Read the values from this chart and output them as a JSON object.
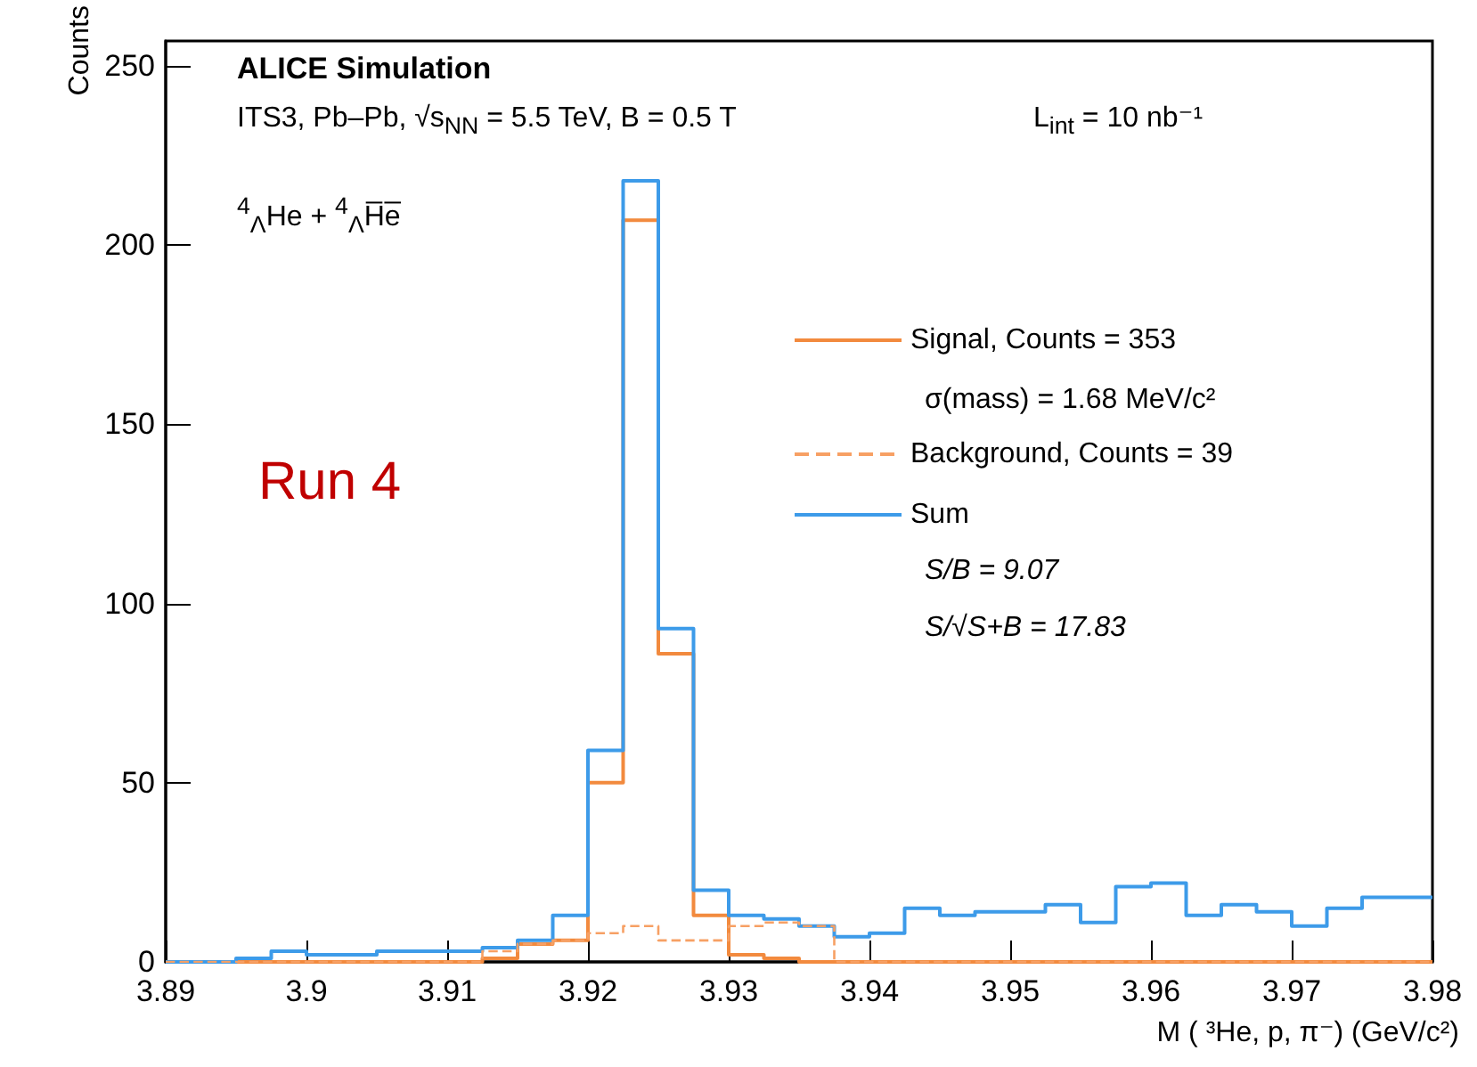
{
  "chart_data": {
    "type": "histogram",
    "xlabel": "M ( ³He, p, π⁻) (GeV/c²)",
    "ylabel": "Counts",
    "bins": [
      3.89,
      3.8925,
      3.895,
      3.8975,
      3.9,
      3.9025,
      3.905,
      3.9075,
      3.91,
      3.9125,
      3.915,
      3.9175,
      3.92,
      3.9225,
      3.925,
      3.9275,
      3.93,
      3.9325,
      3.935,
      3.9375,
      3.94,
      3.9425,
      3.945,
      3.9475,
      3.95,
      3.9525,
      3.955,
      3.9575,
      3.96,
      3.9625,
      3.965,
      3.9675,
      3.97,
      3.9725,
      3.975,
      3.9775,
      3.98
    ],
    "series": [
      {
        "name": "Signal, Counts = 353",
        "color": "#f28a3e",
        "line_style": "solid",
        "values": [
          0,
          0,
          0,
          0,
          0,
          0,
          0,
          0,
          0,
          1,
          5,
          6,
          50,
          207,
          86,
          13,
          2,
          1,
          0,
          0,
          0,
          0,
          0,
          0,
          0,
          0,
          0,
          0,
          0,
          0,
          0,
          0,
          0,
          0,
          0,
          0
        ]
      },
      {
        "name": "Background, Counts = 39",
        "color": "#f7a064",
        "line_style": "dashed",
        "values": [
          0,
          0,
          0,
          0,
          0,
          0,
          0,
          0,
          0,
          3,
          5,
          6,
          8,
          10,
          6,
          6,
          10,
          11,
          10,
          0,
          0,
          0,
          0,
          0,
          0,
          0,
          0,
          0,
          0,
          0,
          0,
          0,
          0,
          0,
          0,
          0
        ]
      },
      {
        "name": "Sum",
        "color": "#3d9be9",
        "line_style": "solid",
        "values": [
          0,
          0,
          1,
          3,
          2,
          2,
          3,
          3,
          3,
          4,
          6,
          13,
          59,
          218,
          93,
          20,
          13,
          12,
          10,
          7,
          8,
          15,
          13,
          14,
          14,
          16,
          11,
          21,
          22,
          13,
          16,
          14,
          10,
          15,
          18,
          18
        ]
      }
    ],
    "xlim": [
      3.89,
      3.98
    ],
    "xticks": [
      3.89,
      3.9,
      3.91,
      3.92,
      3.93,
      3.94,
      3.95,
      3.96,
      3.97,
      3.98
    ],
    "ylim": [
      0,
      257
    ],
    "yticks": [
      0,
      50,
      100,
      150,
      200,
      250
    ],
    "legend": "right",
    "grid": false,
    "annotations": [
      "ALICE Simulation",
      "ITS3, Pb–Pb, √s$_{NN}$ = 5.5 TeV, B = 0.5 T",
      "L$_{int}$ = 10 nb⁻¹",
      "$^{4}$$_{Λ}$He + $^{4}$$_{Λ}$H̅e̅",
      "σ(mass) = 1.68 MeV/c²",
      "S/B = 9.07",
      "S/√S+B = 17.83",
      "Run 4"
    ]
  }
}
